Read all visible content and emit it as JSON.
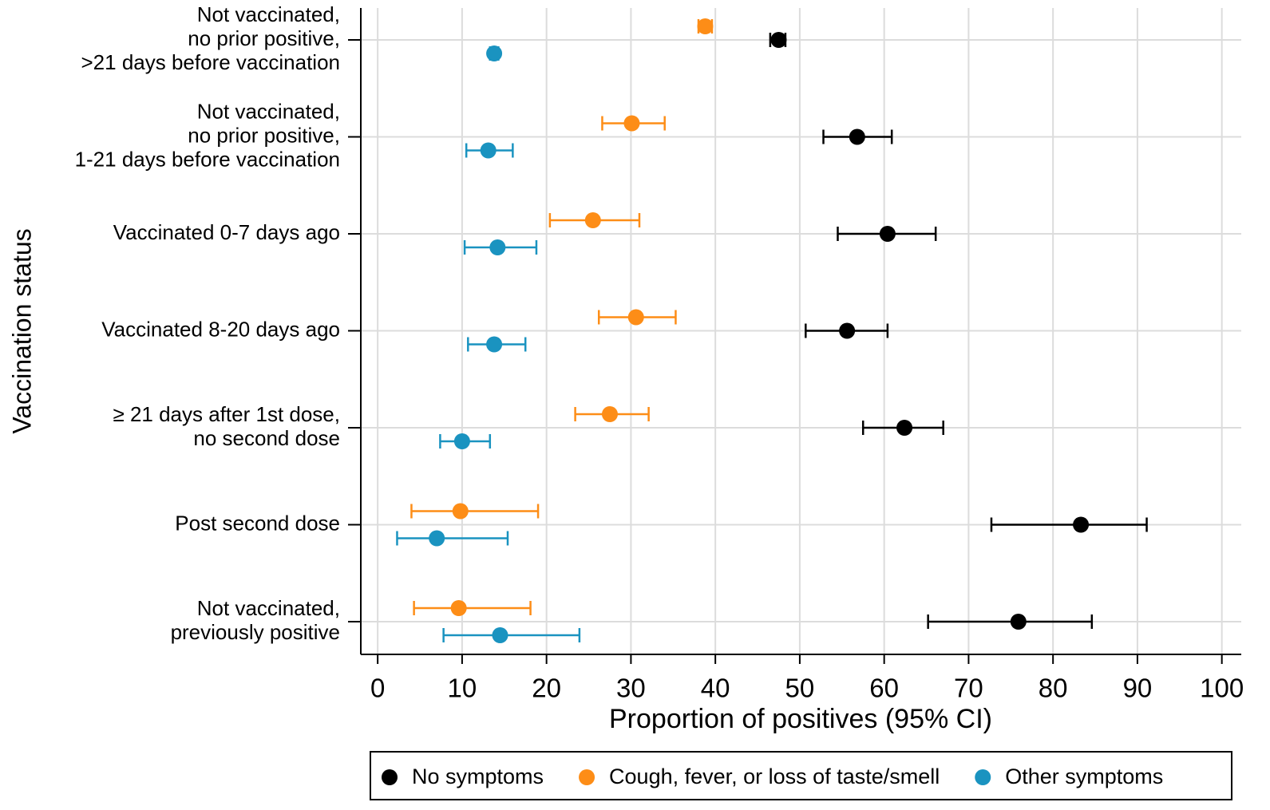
{
  "chart_data": {
    "type": "dot",
    "x_label": "Proportion of positives (95% CI)",
    "y_label": "Vaccination status",
    "categories": [
      [
        "Not vaccinated,",
        "no prior positive,",
        ">21 days before vaccination"
      ],
      [
        "Not vaccinated,",
        "no prior positive,",
        "1-21 days before vaccination"
      ],
      [
        "Vaccinated 0-7 days ago"
      ],
      [
        "Vaccinated 8-20 days ago"
      ],
      [
        "≥ 21 days after 1st dose,",
        "no second dose"
      ],
      [
        "Post second dose"
      ],
      [
        "Not vaccinated,",
        "previously positive"
      ]
    ],
    "series": [
      {
        "name": "No symptoms",
        "color": "#000000",
        "values": [
          47.5,
          56.8,
          60.4,
          55.6,
          62.4,
          83.3,
          75.9
        ],
        "lower": [
          46.5,
          52.8,
          54.5,
          50.7,
          57.5,
          72.7,
          65.2
        ],
        "upper": [
          48.3,
          60.9,
          66.1,
          60.4,
          67.0,
          91.1,
          84.6
        ]
      },
      {
        "name": "Cough, fever, or loss of taste/smell",
        "color": "#fd8d17",
        "values": [
          38.8,
          30.1,
          25.5,
          30.6,
          27.5,
          9.8,
          9.6
        ],
        "lower": [
          38.0,
          26.6,
          20.4,
          26.2,
          23.4,
          4.0,
          4.3
        ],
        "upper": [
          39.6,
          34.0,
          31.0,
          35.3,
          32.1,
          19.0,
          18.1
        ]
      },
      {
        "name": "Other symptoms",
        "color": "#1a93c0",
        "values": [
          13.8,
          13.1,
          14.2,
          13.8,
          10.0,
          7.0,
          14.5
        ],
        "lower": [
          13.3,
          10.5,
          10.3,
          10.7,
          7.4,
          2.3,
          7.8
        ],
        "upper": [
          14.3,
          16.0,
          18.8,
          17.5,
          13.3,
          15.4,
          23.9
        ]
      }
    ],
    "xlim": [
      -2,
      102.3
    ],
    "xticks": [
      0,
      10,
      20,
      30,
      40,
      50,
      60,
      70,
      80,
      90,
      100
    ],
    "grid": true,
    "legend": "bottom"
  }
}
